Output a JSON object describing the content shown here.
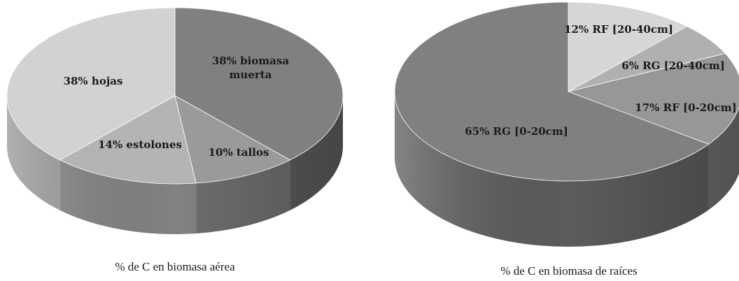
{
  "chart_data": [
    {
      "type": "pie",
      "title": "% de C en biomasa aérea",
      "slices": [
        {
          "label": "38% biomasa muerta",
          "value": 38,
          "color": "#808080"
        },
        {
          "label": "10% tallos",
          "value": 10,
          "color": "#9a9a9a"
        },
        {
          "label": "14% estolones",
          "value": 14,
          "color": "#b4b4b4"
        },
        {
          "label": "38% hojas",
          "value": 38,
          "color": "#d2d2d2"
        }
      ]
    },
    {
      "type": "pie",
      "title": "% de C en biomasa de raíces",
      "slices": [
        {
          "label": "12% RF [20-40cm]",
          "value": 12,
          "color": "#d6d6d6"
        },
        {
          "label": "6% RG [20-40cm]",
          "value": 6,
          "color": "#b0b0b0"
        },
        {
          "label": "17% RF [0-20cm]",
          "value": 17,
          "color": "#979797"
        },
        {
          "label": "65% RG [0-20cm]",
          "value": 65,
          "color": "#808080"
        }
      ]
    }
  ]
}
